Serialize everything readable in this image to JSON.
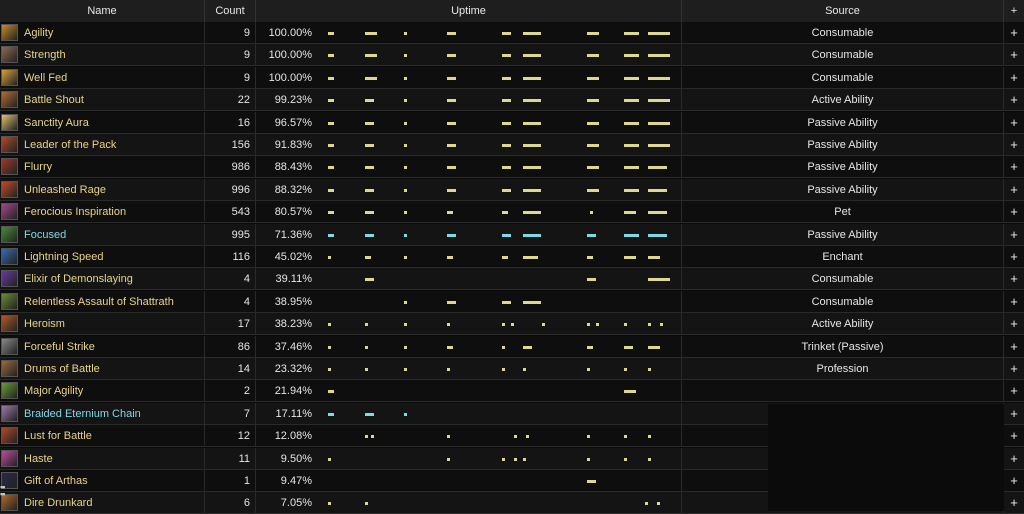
{
  "columns": {
    "name": "Name",
    "count": "Count",
    "uptime": "Uptime",
    "source": "Source",
    "expand": "+"
  },
  "rows": [
    {
      "name": "Agility",
      "count": "9",
      "pct": "100.00%",
      "source": "Consumable",
      "icon": "agility-icon",
      "color": "#c58a2a",
      "cyan": false,
      "bars": [
        [
          0,
          2
        ],
        [
          12,
          4
        ],
        [
          25,
          1
        ],
        [
          39,
          3
        ],
        [
          57,
          3
        ],
        [
          64,
          6
        ],
        [
          85,
          4
        ],
        [
          97,
          5
        ],
        [
          105,
          7
        ]
      ]
    },
    {
      "name": "Strength",
      "count": "9",
      "pct": "100.00%",
      "source": "Consumable",
      "icon": "strength-icon",
      "color": "#8a6a55",
      "cyan": false,
      "bars": [
        [
          0,
          2
        ],
        [
          12,
          4
        ],
        [
          25,
          1
        ],
        [
          39,
          3
        ],
        [
          57,
          3
        ],
        [
          64,
          6
        ],
        [
          85,
          4
        ],
        [
          97,
          5
        ],
        [
          105,
          7
        ]
      ]
    },
    {
      "name": "Well Fed",
      "count": "9",
      "pct": "100.00%",
      "source": "Consumable",
      "icon": "well-fed-icon",
      "color": "#d6a23a",
      "cyan": false,
      "bars": [
        [
          0,
          2
        ],
        [
          12,
          4
        ],
        [
          25,
          1
        ],
        [
          39,
          3
        ],
        [
          57,
          3
        ],
        [
          64,
          6
        ],
        [
          85,
          4
        ],
        [
          97,
          5
        ],
        [
          105,
          7
        ]
      ]
    },
    {
      "name": "Battle Shout",
      "count": "22",
      "pct": "99.23%",
      "source": "Active Ability",
      "icon": "battle-shout-icon",
      "color": "#b06a3a",
      "cyan": false,
      "bars": [
        [
          0,
          2
        ],
        [
          12,
          3
        ],
        [
          25,
          1
        ],
        [
          39,
          3
        ],
        [
          57,
          3
        ],
        [
          64,
          6
        ],
        [
          85,
          4
        ],
        [
          97,
          5
        ],
        [
          105,
          7
        ]
      ]
    },
    {
      "name": "Sanctity Aura",
      "count": "16",
      "pct": "96.57%",
      "source": "Passive Ability",
      "icon": "sanctity-aura-icon",
      "color": "#e0c070",
      "cyan": false,
      "bars": [
        [
          0,
          2
        ],
        [
          12,
          3
        ],
        [
          25,
          1
        ],
        [
          39,
          3
        ],
        [
          57,
          3
        ],
        [
          64,
          6
        ],
        [
          85,
          4
        ],
        [
          97,
          5
        ],
        [
          105,
          7
        ]
      ]
    },
    {
      "name": "Leader of the Pack",
      "count": "156",
      "pct": "91.83%",
      "source": "Passive Ability",
      "icon": "leader-of-the-pack-icon",
      "color": "#b04a2a",
      "cyan": false,
      "bars": [
        [
          0,
          2
        ],
        [
          12,
          3
        ],
        [
          25,
          1
        ],
        [
          39,
          3
        ],
        [
          57,
          3
        ],
        [
          64,
          6
        ],
        [
          85,
          4
        ],
        [
          97,
          5
        ],
        [
          105,
          7
        ]
      ]
    },
    {
      "name": "Flurry",
      "count": "986",
      "pct": "88.43%",
      "source": "Passive Ability",
      "icon": "flurry-icon",
      "color": "#9a3a2a",
      "cyan": false,
      "bars": [
        [
          0,
          2
        ],
        [
          12,
          3
        ],
        [
          25,
          1
        ],
        [
          39,
          3
        ],
        [
          57,
          3
        ],
        [
          64,
          6
        ],
        [
          85,
          4
        ],
        [
          97,
          5
        ],
        [
          105,
          6
        ]
      ]
    },
    {
      "name": "Unleashed Rage",
      "count": "996",
      "pct": "88.32%",
      "source": "Passive Ability",
      "icon": "unleashed-rage-icon",
      "color": "#c04a2a",
      "cyan": false,
      "bars": [
        [
          0,
          2
        ],
        [
          12,
          3
        ],
        [
          25,
          1
        ],
        [
          39,
          3
        ],
        [
          57,
          3
        ],
        [
          64,
          6
        ],
        [
          85,
          4
        ],
        [
          97,
          5
        ],
        [
          105,
          6
        ]
      ]
    },
    {
      "name": "Ferocious Inspiration",
      "count": "543",
      "pct": "80.57%",
      "source": "Pet",
      "icon": "ferocious-inspiration-icon",
      "color": "#a04a8a",
      "cyan": false,
      "bars": [
        [
          0,
          2
        ],
        [
          12,
          3
        ],
        [
          25,
          1
        ],
        [
          39,
          2
        ],
        [
          57,
          2
        ],
        [
          64,
          6
        ],
        [
          86,
          1
        ],
        [
          97,
          4
        ],
        [
          105,
          6
        ]
      ]
    },
    {
      "name": "Focused",
      "count": "995",
      "pct": "71.36%",
      "source": "Passive Ability",
      "icon": "focused-icon",
      "color": "#4a8a3a",
      "cyan": true,
      "bars": [
        [
          0,
          2
        ],
        [
          12,
          3
        ],
        [
          25,
          1
        ],
        [
          39,
          3
        ],
        [
          57,
          3
        ],
        [
          64,
          6
        ],
        [
          85,
          3
        ],
        [
          97,
          5
        ],
        [
          105,
          6
        ]
      ]
    },
    {
      "name": "Lightning Speed",
      "count": "116",
      "pct": "45.02%",
      "source": "Enchant",
      "icon": "lightning-speed-icon",
      "color": "#3a6ab0",
      "cyan": false,
      "bars": [
        [
          0,
          1
        ],
        [
          12,
          2
        ],
        [
          25,
          1
        ],
        [
          39,
          2
        ],
        [
          57,
          2
        ],
        [
          64,
          5
        ],
        [
          85,
          2
        ],
        [
          97,
          4
        ],
        [
          105,
          4
        ]
      ]
    },
    {
      "name": "Elixir of Demonslaying",
      "count": "4",
      "pct": "39.11%",
      "source": "Consumable",
      "icon": "elixir-of-demonslaying-icon",
      "color": "#6a3aa0",
      "cyan": false,
      "bars": [
        [
          12,
          3
        ],
        [
          85,
          3
        ],
        [
          105,
          7
        ]
      ]
    },
    {
      "name": "Relentless Assault of Shattrath",
      "count": "4",
      "pct": "38.95%",
      "source": "Consumable",
      "icon": "relentless-assault-icon",
      "color": "#6a8a3a",
      "cyan": false,
      "bars": [
        [
          25,
          1
        ],
        [
          39,
          3
        ],
        [
          57,
          3
        ],
        [
          64,
          6
        ]
      ]
    },
    {
      "name": "Heroism",
      "count": "17",
      "pct": "38.23%",
      "source": "Active Ability",
      "icon": "heroism-icon",
      "color": "#b05a2a",
      "cyan": false,
      "bars": [
        [
          0,
          1
        ],
        [
          12,
          1
        ],
        [
          25,
          1
        ],
        [
          39,
          1
        ],
        [
          57,
          1
        ],
        [
          60,
          1
        ],
        [
          70,
          1
        ],
        [
          85,
          1
        ],
        [
          88,
          1
        ],
        [
          97,
          1
        ],
        [
          105,
          1
        ],
        [
          109,
          1
        ]
      ]
    },
    {
      "name": "Forceful Strike",
      "count": "86",
      "pct": "37.46%",
      "source": "Trinket (Passive)",
      "icon": "forceful-strike-icon",
      "color": "#8a8a8a",
      "cyan": false,
      "bars": [
        [
          0,
          1
        ],
        [
          12,
          1
        ],
        [
          25,
          1
        ],
        [
          39,
          2
        ],
        [
          57,
          1
        ],
        [
          64,
          3
        ],
        [
          85,
          2
        ],
        [
          97,
          3
        ],
        [
          105,
          4
        ]
      ]
    },
    {
      "name": "Drums of Battle",
      "count": "14",
      "pct": "23.32%",
      "source": "Profession",
      "icon": "drums-of-battle-icon",
      "color": "#9a6a3a",
      "cyan": false,
      "bars": [
        [
          0,
          1
        ],
        [
          12,
          1
        ],
        [
          25,
          1
        ],
        [
          39,
          1
        ],
        [
          57,
          1
        ],
        [
          64,
          1
        ],
        [
          85,
          1
        ],
        [
          97,
          1
        ],
        [
          105,
          1
        ]
      ]
    },
    {
      "name": "Major Agility",
      "count": "2",
      "pct": "21.94%",
      "source": "",
      "icon": "major-agility-icon",
      "color": "#6a9a3a",
      "cyan": false,
      "bars": [
        [
          0,
          2
        ],
        [
          97,
          4
        ]
      ]
    },
    {
      "name": "Braided Eternium Chain",
      "count": "7",
      "pct": "17.11%",
      "source": "",
      "icon": "braided-eternium-chain-icon",
      "color": "#9a7aaa",
      "cyan": true,
      "bars": [
        [
          0,
          2
        ],
        [
          12,
          3
        ],
        [
          25,
          1
        ]
      ]
    },
    {
      "name": "Lust for Battle",
      "count": "12",
      "pct": "12.08%",
      "source": "",
      "icon": "lust-for-battle-icon",
      "color": "#b04a2a",
      "cyan": false,
      "bars": [
        [
          12,
          1
        ],
        [
          14,
          1
        ],
        [
          39,
          1
        ],
        [
          61,
          1
        ],
        [
          65,
          1
        ],
        [
          85,
          1
        ],
        [
          97,
          1
        ],
        [
          105,
          1
        ]
      ]
    },
    {
      "name": "Haste",
      "count": "11",
      "pct": "9.50%",
      "source": "",
      "icon": "haste-icon",
      "color": "#c04aa0",
      "cyan": false,
      "bars": [
        [
          0,
          1
        ],
        [
          39,
          1
        ],
        [
          57,
          1
        ],
        [
          61,
          1
        ],
        [
          64,
          1
        ],
        [
          85,
          1
        ],
        [
          97,
          1
        ],
        [
          105,
          1
        ]
      ]
    },
    {
      "name": "Gift of Arthas",
      "count": "1",
      "pct": "9.47%",
      "source": "",
      "icon": "gift-of-arthas-icon",
      "color": "#2a2a4a",
      "cyan": false,
      "bars": [
        [
          85,
          3
        ]
      ]
    },
    {
      "name": "Dire Drunkard",
      "count": "6",
      "pct": "7.05%",
      "source": "",
      "icon": "dire-drunkard-icon",
      "color": "#b06a2a",
      "cyan": false,
      "bars": [
        [
          0,
          1
        ],
        [
          12,
          1
        ],
        [
          104,
          1
        ],
        [
          108,
          1
        ]
      ]
    }
  ]
}
